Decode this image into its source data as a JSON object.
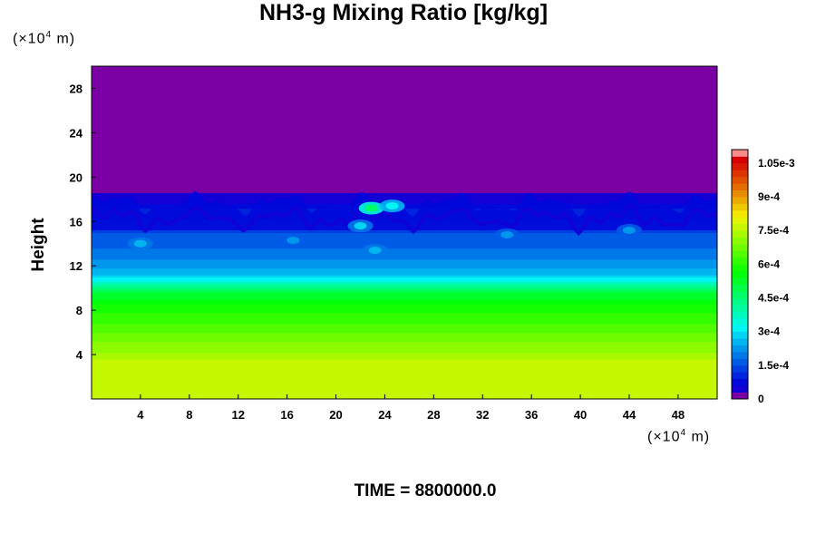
{
  "chart_data": {
    "type": "heatmap",
    "title": "NH3-g Mixing Ratio [kg/kg]",
    "xlabel": "",
    "ylabel": "Height",
    "x_unit": {
      "prefix": "(×10",
      "exponent": "4",
      "suffix": " m)"
    },
    "y_unit": {
      "prefix": "(×10",
      "exponent": "4",
      "suffix": " m)"
    },
    "xlim": [
      0,
      51.2
    ],
    "ylim": [
      0,
      30
    ],
    "x_ticks": [
      4,
      8,
      12,
      16,
      20,
      24,
      28,
      32,
      36,
      40,
      44,
      48
    ],
    "y_ticks": [
      4,
      8,
      12,
      16,
      20,
      24,
      28
    ],
    "colorbar": {
      "min": 0,
      "max": 0.00111,
      "step": 3e-05,
      "tick_values": [
        0,
        0.00015,
        0.0003,
        0.00045,
        0.0006,
        0.00075,
        0.0009,
        0.00105
      ],
      "tick_labels": [
        "0",
        "1.5e-4",
        "3e-4",
        "4.5e-4",
        "6e-4",
        "7.5e-4",
        "9e-4",
        "1.05e-3"
      ]
    },
    "vertical_profile": [
      {
        "height": 0.0,
        "value": 0.00077
      },
      {
        "height": 2.0,
        "value": 0.00077
      },
      {
        "height": 3.4,
        "value": 0.000755
      },
      {
        "height": 4.5,
        "value": 0.00071
      },
      {
        "height": 6.0,
        "value": 0.00066
      },
      {
        "height": 7.5,
        "value": 0.00061
      },
      {
        "height": 8.8,
        "value": 0.00056
      },
      {
        "height": 9.8,
        "value": 0.00049
      },
      {
        "height": 10.3,
        "value": 0.00041
      },
      {
        "height": 10.6,
        "value": 0.00034
      },
      {
        "height": 11.2,
        "value": 0.00026
      },
      {
        "height": 12.5,
        "value": 0.000215
      },
      {
        "height": 13.8,
        "value": 0.000175
      },
      {
        "height": 15.5,
        "value": 0.00014
      },
      {
        "height": 17.0,
        "value": 0.0001
      },
      {
        "height": 18.0,
        "value": 4e-05
      },
      {
        "height": 18.6,
        "value": 0.0
      },
      {
        "height": 30.0,
        "value": 0.0
      }
    ],
    "features": [
      {
        "x": 22.9,
        "height": 17.2,
        "value": 0.00045
      },
      {
        "x": 24.6,
        "height": 17.4,
        "value": 0.00032
      },
      {
        "x": 22.0,
        "height": 15.6,
        "value": 0.00028
      },
      {
        "x": 23.2,
        "height": 13.4,
        "value": 0.00026
      },
      {
        "x": 4.0,
        "height": 14.0,
        "value": 0.00024
      },
      {
        "x": 16.5,
        "height": 14.3,
        "value": 0.00023
      },
      {
        "x": 34.0,
        "height": 14.8,
        "value": 0.00022
      },
      {
        "x": 44.0,
        "height": 15.2,
        "value": 0.00021
      }
    ]
  },
  "footer": {
    "time_label": "TIME = 8800000.0"
  }
}
